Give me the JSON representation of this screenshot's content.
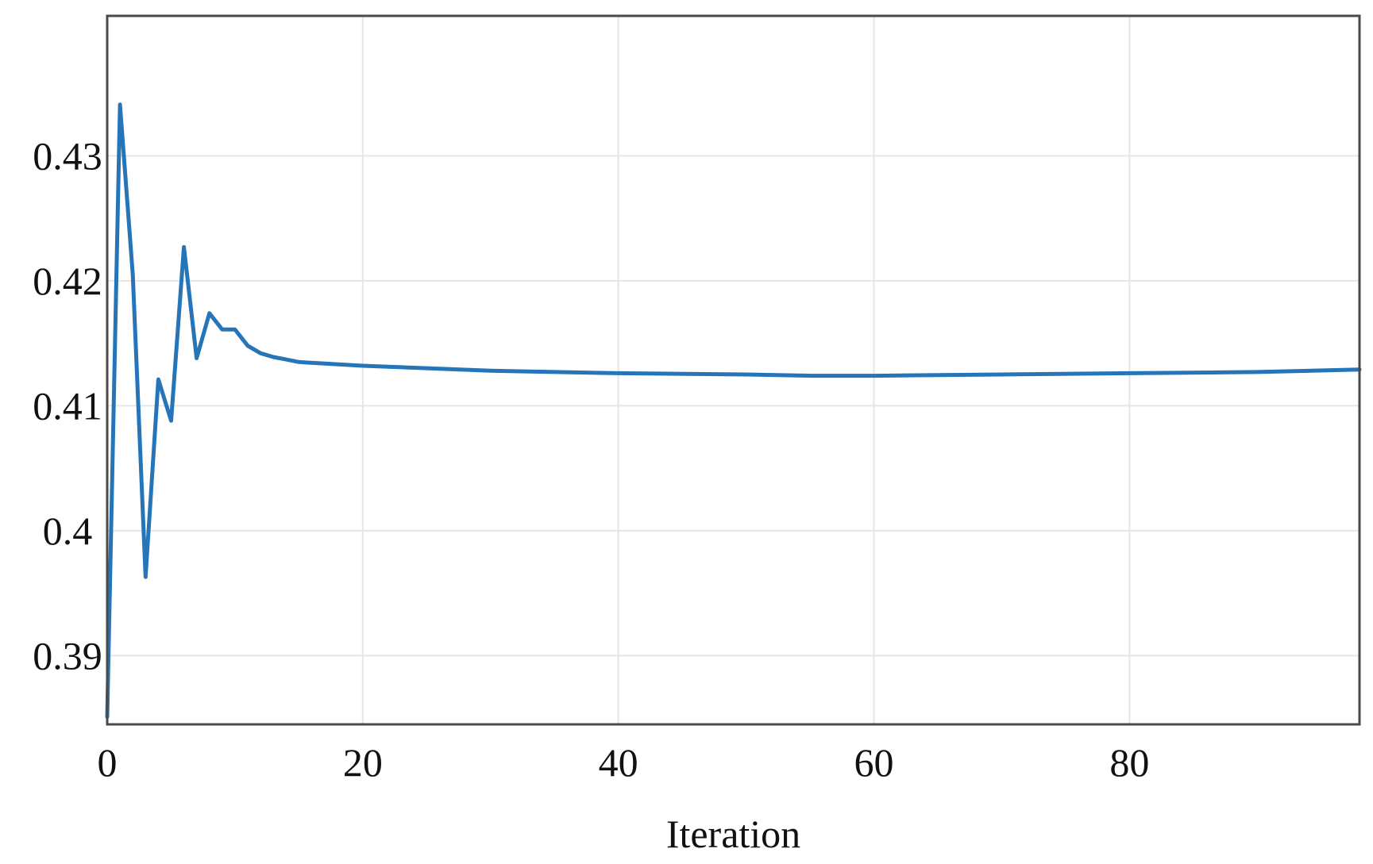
{
  "chart_data": {
    "type": "line",
    "title": "",
    "xlabel": "Iteration",
    "ylabel": "",
    "xlim": [
      0,
      98
    ],
    "ylim": [
      0.3845,
      0.4412
    ],
    "x_ticks": [
      0,
      20,
      40,
      60,
      80
    ],
    "x_tick_labels": [
      "0",
      "20",
      "40",
      "60",
      "80"
    ],
    "y_ticks": [
      0.39,
      0.4,
      0.41,
      0.42,
      0.43
    ],
    "y_tick_labels": [
      "0.39",
      "0.4",
      "0.41",
      "0.42",
      "0.43"
    ],
    "grid": true,
    "legend": "none",
    "series": [
      {
        "color": "#2675b8",
        "x": [
          0,
          1,
          2,
          3,
          4,
          5,
          6,
          7,
          8,
          9,
          10,
          11,
          12,
          13,
          14,
          15,
          20,
          30,
          40,
          50,
          55,
          60,
          70,
          80,
          90,
          98
        ],
        "y": [
          0.3851,
          0.4341,
          0.4205,
          0.3963,
          0.4121,
          0.4088,
          0.4227,
          0.4138,
          0.4174,
          0.4161,
          0.4161,
          0.4148,
          0.4142,
          0.4139,
          0.4137,
          0.4135,
          0.4132,
          0.4128,
          0.4126,
          0.4125,
          0.4124,
          0.4124,
          0.4125,
          0.4126,
          0.4127,
          0.4129
        ]
      }
    ]
  }
}
